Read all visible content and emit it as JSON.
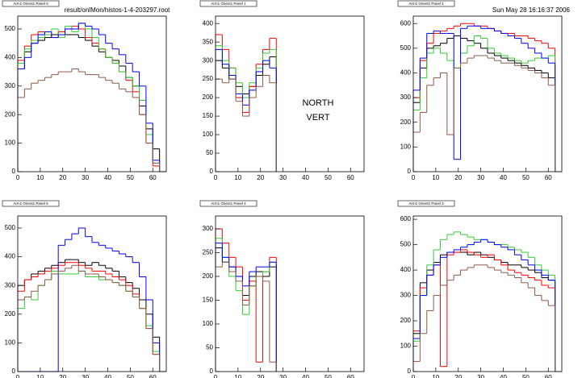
{
  "header": {
    "file": "result/onlMon/histos-1-4-203297.root",
    "date": "Sun May 28 16:16:37 2006"
  },
  "chart_data": [
    {
      "type": "histogram",
      "title": "Arm1 Orient1 Panel 0",
      "bins": [
        0,
        3,
        6,
        9,
        12,
        15,
        18,
        21,
        24,
        27,
        30,
        33,
        36,
        39,
        42,
        45,
        48,
        51,
        54,
        57,
        60,
        63,
        66
      ],
      "xlim": [
        0,
        66
      ],
      "ylim": [
        0,
        545
      ],
      "xticks": [
        0,
        10,
        20,
        30,
        40,
        50,
        60
      ],
      "yticks": [
        0,
        100,
        200,
        300,
        400,
        500
      ],
      "series": [
        {
          "color": "#000000",
          "values": [
            360,
            420,
            450,
            460,
            470,
            480,
            490,
            480,
            480,
            470,
            460,
            440,
            420,
            400,
            390,
            370,
            330,
            300,
            230,
            150,
            80,
            0
          ]
        },
        {
          "color": "#ff0000",
          "values": [
            390,
            440,
            480,
            490,
            480,
            470,
            490,
            500,
            510,
            500,
            470,
            450,
            430,
            400,
            380,
            350,
            320,
            280,
            200,
            100,
            20,
            0
          ]
        },
        {
          "color": "#33cc33",
          "values": [
            380,
            430,
            460,
            470,
            480,
            500,
            470,
            510,
            490,
            520,
            500,
            470,
            430,
            400,
            380,
            350,
            330,
            300,
            250,
            130,
            30,
            0
          ]
        },
        {
          "color": "#0000ff",
          "values": [
            360,
            400,
            450,
            480,
            490,
            470,
            480,
            500,
            500,
            520,
            510,
            500,
            480,
            450,
            430,
            410,
            380,
            350,
            300,
            170,
            40,
            0
          ]
        },
        {
          "color": "#8b5a4a",
          "values": [
            260,
            290,
            310,
            320,
            330,
            340,
            350,
            350,
            360,
            350,
            340,
            340,
            330,
            320,
            310,
            290,
            280,
            260,
            200,
            100,
            30,
            0
          ]
        }
      ]
    },
    {
      "type": "histogram",
      "title": "Arm1 Orient1 Panel 1",
      "annotations": [
        "NORTH",
        "VERT"
      ],
      "bins": [
        0,
        3,
        6,
        9,
        12,
        15,
        18,
        21,
        24,
        27
      ],
      "xlim": [
        0,
        66
      ],
      "ylim": [
        0,
        420
      ],
      "xticks": [
        0,
        10,
        20,
        30,
        40,
        50,
        60
      ],
      "yticks": [
        0,
        50,
        100,
        150,
        200,
        250,
        300,
        350,
        400
      ],
      "series": [
        {
          "color": "#000000",
          "values": [
            300,
            280,
            250,
            230,
            210,
            230,
            260,
            290,
            310
          ]
        },
        {
          "color": "#ff0000",
          "values": [
            370,
            330,
            280,
            200,
            160,
            230,
            290,
            330,
            360
          ]
        },
        {
          "color": "#33cc33",
          "values": [
            340,
            300,
            280,
            240,
            200,
            240,
            280,
            320,
            330
          ]
        },
        {
          "color": "#0000ff",
          "values": [
            330,
            290,
            260,
            210,
            180,
            220,
            270,
            300,
            280
          ]
        },
        {
          "color": "#8b5a4a",
          "values": [
            250,
            240,
            250,
            190,
            150,
            200,
            230,
            260,
            240
          ]
        }
      ]
    },
    {
      "type": "histogram",
      "title": "Arm1 Orient1 Panel 2",
      "bins": [
        0,
        3,
        6,
        9,
        12,
        15,
        18,
        21,
        24,
        27,
        30,
        33,
        36,
        39,
        42,
        45,
        48,
        51,
        54,
        57,
        60,
        63,
        66
      ],
      "xlim": [
        0,
        66
      ],
      "ylim": [
        0,
        630
      ],
      "xticks": [
        0,
        10,
        20,
        30,
        40,
        50,
        60
      ],
      "yticks": [
        0,
        100,
        200,
        300,
        400,
        500,
        600
      ],
      "series": [
        {
          "color": "#000000",
          "values": [
            280,
            420,
            500,
            510,
            520,
            540,
            550,
            540,
            530,
            520,
            500,
            480,
            470,
            460,
            450,
            440,
            430,
            420,
            410,
            400,
            380,
            0
          ]
        },
        {
          "color": "#ff0000",
          "values": [
            300,
            450,
            520,
            560,
            570,
            580,
            590,
            600,
            600,
            590,
            590,
            580,
            570,
            560,
            560,
            550,
            550,
            540,
            530,
            520,
            500,
            0
          ]
        },
        {
          "color": "#33cc33",
          "values": [
            250,
            380,
            480,
            500,
            480,
            450,
            420,
            480,
            510,
            550,
            540,
            500,
            480,
            470,
            460,
            450,
            440,
            450,
            460,
            460,
            470,
            0
          ]
        },
        {
          "color": "#0000ff",
          "values": [
            330,
            460,
            560,
            570,
            560,
            560,
            50,
            580,
            590,
            590,
            580,
            580,
            570,
            560,
            550,
            540,
            520,
            500,
            480,
            460,
            440,
            0
          ]
        },
        {
          "color": "#8b5a4a",
          "values": [
            160,
            240,
            350,
            380,
            400,
            150,
            420,
            440,
            460,
            470,
            470,
            460,
            450,
            440,
            440,
            430,
            420,
            410,
            400,
            380,
            350,
            0
          ]
        }
      ]
    },
    {
      "type": "histogram",
      "title": "Arm1 Orient1 Panel 5",
      "bins": [
        0,
        3,
        6,
        9,
        12,
        15,
        18,
        21,
        24,
        27,
        30,
        33,
        36,
        39,
        42,
        45,
        48,
        51,
        54,
        57,
        60,
        63,
        66
      ],
      "xlim": [
        0,
        66
      ],
      "ylim": [
        0,
        542
      ],
      "xticks": [
        0,
        10,
        20,
        30,
        40,
        50,
        60
      ],
      "yticks": [
        0,
        100,
        200,
        300,
        400,
        500
      ],
      "series": [
        {
          "color": "#000000",
          "values": [
            300,
            320,
            340,
            350,
            360,
            370,
            380,
            390,
            390,
            380,
            370,
            380,
            370,
            360,
            350,
            330,
            310,
            290,
            250,
            200,
            120,
            0
          ]
        },
        {
          "color": "#ff0000",
          "values": [
            280,
            320,
            330,
            340,
            350,
            360,
            370,
            380,
            380,
            370,
            360,
            350,
            350,
            340,
            330,
            320,
            300,
            270,
            220,
            150,
            60,
            0
          ]
        },
        {
          "color": "#33cc33",
          "values": [
            220,
            260,
            250,
            300,
            320,
            350,
            340,
            340,
            340,
            350,
            330,
            330,
            320,
            320,
            310,
            300,
            280,
            260,
            220,
            160,
            70,
            0
          ]
        },
        {
          "color": "#0000ff",
          "values": [
            0,
            0,
            0,
            0,
            0,
            0,
            440,
            460,
            480,
            500,
            470,
            450,
            440,
            430,
            420,
            410,
            400,
            380,
            330,
            250,
            100,
            0
          ]
        },
        {
          "color": "#8b5a4a",
          "values": [
            250,
            260,
            280,
            300,
            320,
            340,
            350,
            360,
            370,
            350,
            340,
            340,
            330,
            320,
            310,
            300,
            280,
            260,
            220,
            150,
            60,
            0
          ]
        }
      ]
    },
    {
      "type": "histogram",
      "title": "Arm1 Orient1 Panel 4",
      "bins": [
        0,
        3,
        6,
        9,
        12,
        15,
        18,
        21,
        24,
        27
      ],
      "xlim": [
        0,
        66
      ],
      "ylim": [
        0,
        327
      ],
      "xticks": [
        0,
        10,
        20,
        30,
        40,
        50,
        60
      ],
      "yticks": [
        0,
        50,
        100,
        150,
        200,
        250,
        300
      ],
      "series": [
        {
          "color": "#000000",
          "values": [
            260,
            230,
            220,
            200,
            160,
            200,
            210,
            200,
            220
          ]
        },
        {
          "color": "#ff0000",
          "values": [
            300,
            270,
            240,
            220,
            150,
            190,
            20,
            210,
            240
          ]
        },
        {
          "color": "#33cc33",
          "values": [
            280,
            240,
            200,
            170,
            120,
            180,
            200,
            210,
            230
          ]
        },
        {
          "color": "#0000ff",
          "values": [
            270,
            240,
            220,
            200,
            180,
            210,
            220,
            220,
            230
          ]
        },
        {
          "color": "#8b5a4a",
          "values": [
            220,
            230,
            210,
            190,
            140,
            180,
            200,
            190,
            20
          ]
        }
      ]
    },
    {
      "type": "histogram",
      "title": "Arm1 Orient1 Panel 3",
      "bins": [
        0,
        3,
        6,
        9,
        12,
        15,
        18,
        21,
        24,
        27,
        30,
        33,
        36,
        39,
        42,
        45,
        48,
        51,
        54,
        57,
        60,
        63,
        66
      ],
      "xlim": [
        0,
        66
      ],
      "ylim": [
        0,
        613
      ],
      "xticks": [
        0,
        10,
        20,
        30,
        40,
        50,
        60
      ],
      "yticks": [
        0,
        100,
        200,
        300,
        400,
        500,
        600
      ],
      "series": [
        {
          "color": "#000000",
          "values": [
            150,
            350,
            400,
            430,
            460,
            470,
            470,
            470,
            460,
            470,
            460,
            450,
            440,
            430,
            420,
            420,
            410,
            400,
            390,
            370,
            360,
            0
          ]
        },
        {
          "color": "#ff0000",
          "values": [
            160,
            330,
            380,
            420,
            20,
            460,
            470,
            480,
            470,
            460,
            450,
            460,
            440,
            420,
            400,
            390,
            380,
            370,
            360,
            340,
            330,
            0
          ]
        },
        {
          "color": "#33cc33",
          "values": [
            120,
            300,
            420,
            480,
            520,
            540,
            550,
            540,
            530,
            520,
            520,
            510,
            500,
            500,
            490,
            480,
            470,
            450,
            420,
            400,
            380,
            0
          ]
        },
        {
          "color": "#0000ff",
          "values": [
            130,
            300,
            380,
            420,
            450,
            470,
            480,
            490,
            500,
            510,
            520,
            510,
            500,
            490,
            480,
            460,
            440,
            420,
            400,
            380,
            360,
            0
          ]
        },
        {
          "color": "#8b5a4a",
          "values": [
            40,
            150,
            240,
            300,
            340,
            360,
            380,
            400,
            410,
            420,
            420,
            410,
            400,
            390,
            380,
            370,
            350,
            330,
            300,
            280,
            260,
            0
          ]
        }
      ]
    }
  ]
}
